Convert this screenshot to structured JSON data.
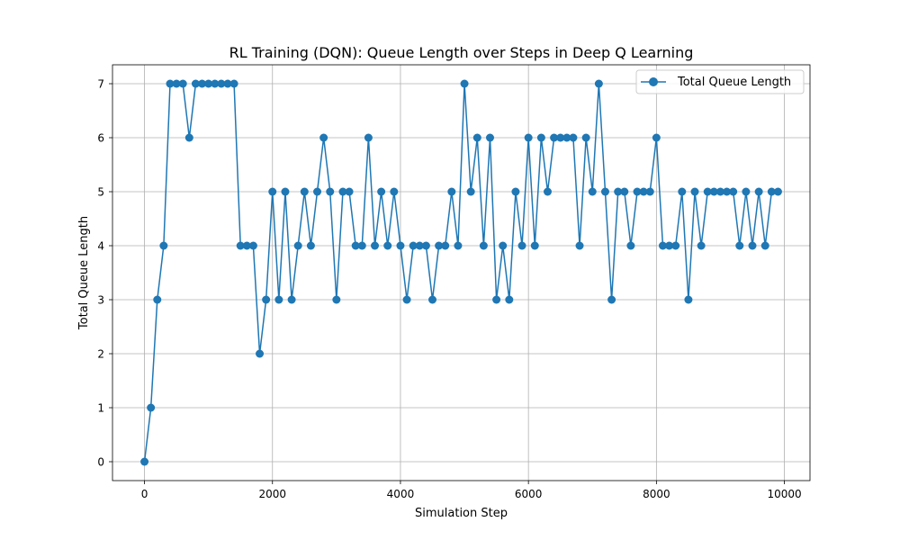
{
  "chart_data": {
    "type": "line",
    "title": "RL Training (DQN): Queue Length over Steps in Deep Q Learning",
    "xlabel": "Simulation Step",
    "ylabel": "Total Queue Length",
    "xlim": [
      -500,
      10400
    ],
    "ylim": [
      -0.35,
      7.35
    ],
    "x_ticks": [
      0,
      2000,
      4000,
      6000,
      8000,
      10000
    ],
    "x_tick_labels": [
      "0",
      "2000",
      "4000",
      "6000",
      "8000",
      "10000"
    ],
    "y_ticks": [
      0,
      1,
      2,
      3,
      4,
      5,
      6,
      7
    ],
    "y_tick_labels": [
      "0",
      "1",
      "2",
      "3",
      "4",
      "5",
      "6",
      "7"
    ],
    "grid": true,
    "legend_position": "top-right",
    "color": "#1f77b4",
    "marker": "circle",
    "series": [
      {
        "name": "Total Queue Length",
        "x": [
          0,
          100,
          200,
          300,
          400,
          500,
          600,
          700,
          800,
          900,
          1000,
          1100,
          1200,
          1300,
          1400,
          1500,
          1600,
          1700,
          1800,
          1900,
          2000,
          2100,
          2200,
          2300,
          2400,
          2500,
          2600,
          2700,
          2800,
          2900,
          3000,
          3100,
          3200,
          3300,
          3400,
          3500,
          3600,
          3700,
          3800,
          3900,
          4000,
          4100,
          4200,
          4300,
          4400,
          4500,
          4600,
          4700,
          4800,
          4900,
          5000,
          5100,
          5200,
          5300,
          5400,
          5500,
          5600,
          5700,
          5800,
          5900,
          6000,
          6100,
          6200,
          6300,
          6400,
          6500,
          6600,
          6700,
          6800,
          6900,
          7000,
          7100,
          7200,
          7300,
          7400,
          7500,
          7600,
          7700,
          7800,
          7900,
          8000,
          8100,
          8200,
          8300,
          8400,
          8500,
          8600,
          8700,
          8800,
          8900,
          9000,
          9100,
          9200,
          9300,
          9400,
          9500,
          9600,
          9700,
          9800,
          9900
        ],
        "y": [
          0,
          1,
          3,
          4,
          7,
          7,
          7,
          6,
          7,
          7,
          7,
          7,
          7,
          7,
          7,
          4,
          4,
          4,
          2,
          3,
          5,
          3,
          5,
          3,
          4,
          5,
          4,
          5,
          6,
          5,
          3,
          5,
          5,
          4,
          4,
          6,
          4,
          5,
          4,
          5,
          4,
          3,
          4,
          4,
          4,
          3,
          4,
          4,
          5,
          4,
          7,
          5,
          6,
          4,
          6,
          3,
          4,
          3,
          5,
          4,
          6,
          4,
          6,
          5,
          6,
          6,
          6,
          6,
          4,
          6,
          5,
          7,
          5,
          3,
          5,
          5,
          4,
          5,
          5,
          5,
          6,
          4,
          4,
          4,
          5,
          3,
          5,
          4,
          5,
          5,
          5,
          5,
          5,
          4,
          5,
          4,
          5,
          4,
          5,
          5
        ]
      }
    ]
  }
}
